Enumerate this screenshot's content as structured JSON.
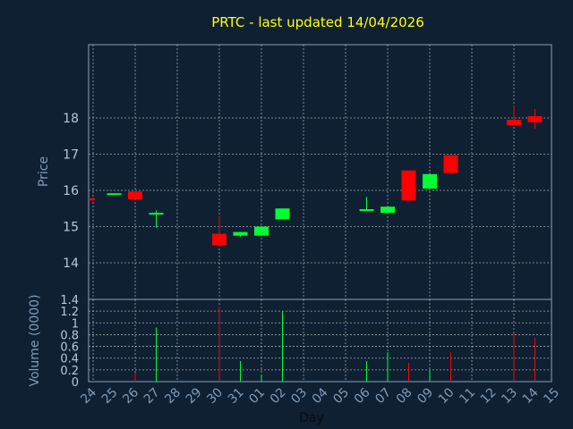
{
  "chart_data": {
    "type": "candlestick",
    "title": "PRTC - last updated 14/04/2026",
    "xlabel": "Day",
    "price_panel": {
      "ylabel": "Price",
      "ylim": [
        13,
        20
      ],
      "yticks": [
        "14",
        "15",
        "16",
        "17",
        "18"
      ],
      "up_color": "#00ff33",
      "down_color": "#ff0000"
    },
    "volume_panel": {
      "ylabel": "Volume (0000)",
      "ylim": [
        0,
        1.4
      ],
      "yticks": [
        "0",
        "0.2",
        "0.4",
        "0.6",
        "0.8",
        "1",
        "1.2",
        "1.4"
      ]
    },
    "x_ticks": [
      "24",
      "25",
      "26",
      "27",
      "28",
      "29",
      "30",
      "31",
      "01",
      "02",
      "03",
      "04",
      "05",
      "06",
      "07",
      "08",
      "09",
      "10",
      "11",
      "12",
      "13",
      "14",
      "15"
    ],
    "candles": [
      {
        "x": "24",
        "open": 15.78,
        "high": 15.8,
        "low": 15.72,
        "close": 15.72,
        "volume": 0.0
      },
      {
        "x": "25",
        "open": 15.9,
        "high": 15.92,
        "low": 15.88,
        "close": 15.92,
        "volume": 0.0
      },
      {
        "x": "26",
        "open": 15.97,
        "high": 15.97,
        "low": 15.75,
        "close": 15.75,
        "volume": 0.15
      },
      {
        "x": "27",
        "open": 15.35,
        "high": 15.45,
        "low": 14.97,
        "close": 15.38,
        "volume": 0.92
      },
      {
        "x": "30",
        "open": 14.8,
        "high": 15.3,
        "low": 14.45,
        "close": 14.48,
        "volume": 1.28
      },
      {
        "x": "31",
        "open": 14.75,
        "high": 14.85,
        "low": 14.72,
        "close": 14.85,
        "volume": 0.35
      },
      {
        "x": "01",
        "open": 14.75,
        "high": 15.0,
        "low": 14.75,
        "close": 15.0,
        "volume": 0.12
      },
      {
        "x": "02",
        "open": 15.2,
        "high": 15.5,
        "low": 15.2,
        "close": 15.5,
        "volume": 1.2
      },
      {
        "x": "06",
        "open": 15.47,
        "high": 15.82,
        "low": 15.45,
        "close": 15.48,
        "volume": 0.35
      },
      {
        "x": "07",
        "open": 15.38,
        "high": 15.55,
        "low": 15.38,
        "close": 15.55,
        "volume": 0.5
      },
      {
        "x": "08",
        "open": 16.55,
        "high": 16.55,
        "low": 15.72,
        "close": 15.72,
        "volume": 0.32
      },
      {
        "x": "09",
        "open": 16.05,
        "high": 16.48,
        "low": 16.05,
        "close": 16.45,
        "volume": 0.2
      },
      {
        "x": "10",
        "open": 16.97,
        "high": 16.97,
        "low": 16.48,
        "close": 16.48,
        "volume": 0.5
      },
      {
        "x": "13",
        "open": 17.95,
        "high": 18.35,
        "low": 17.8,
        "close": 17.8,
        "volume": 0.82
      },
      {
        "x": "14",
        "open": 18.05,
        "high": 18.25,
        "low": 17.7,
        "close": 17.88,
        "volume": 0.75
      }
    ]
  }
}
